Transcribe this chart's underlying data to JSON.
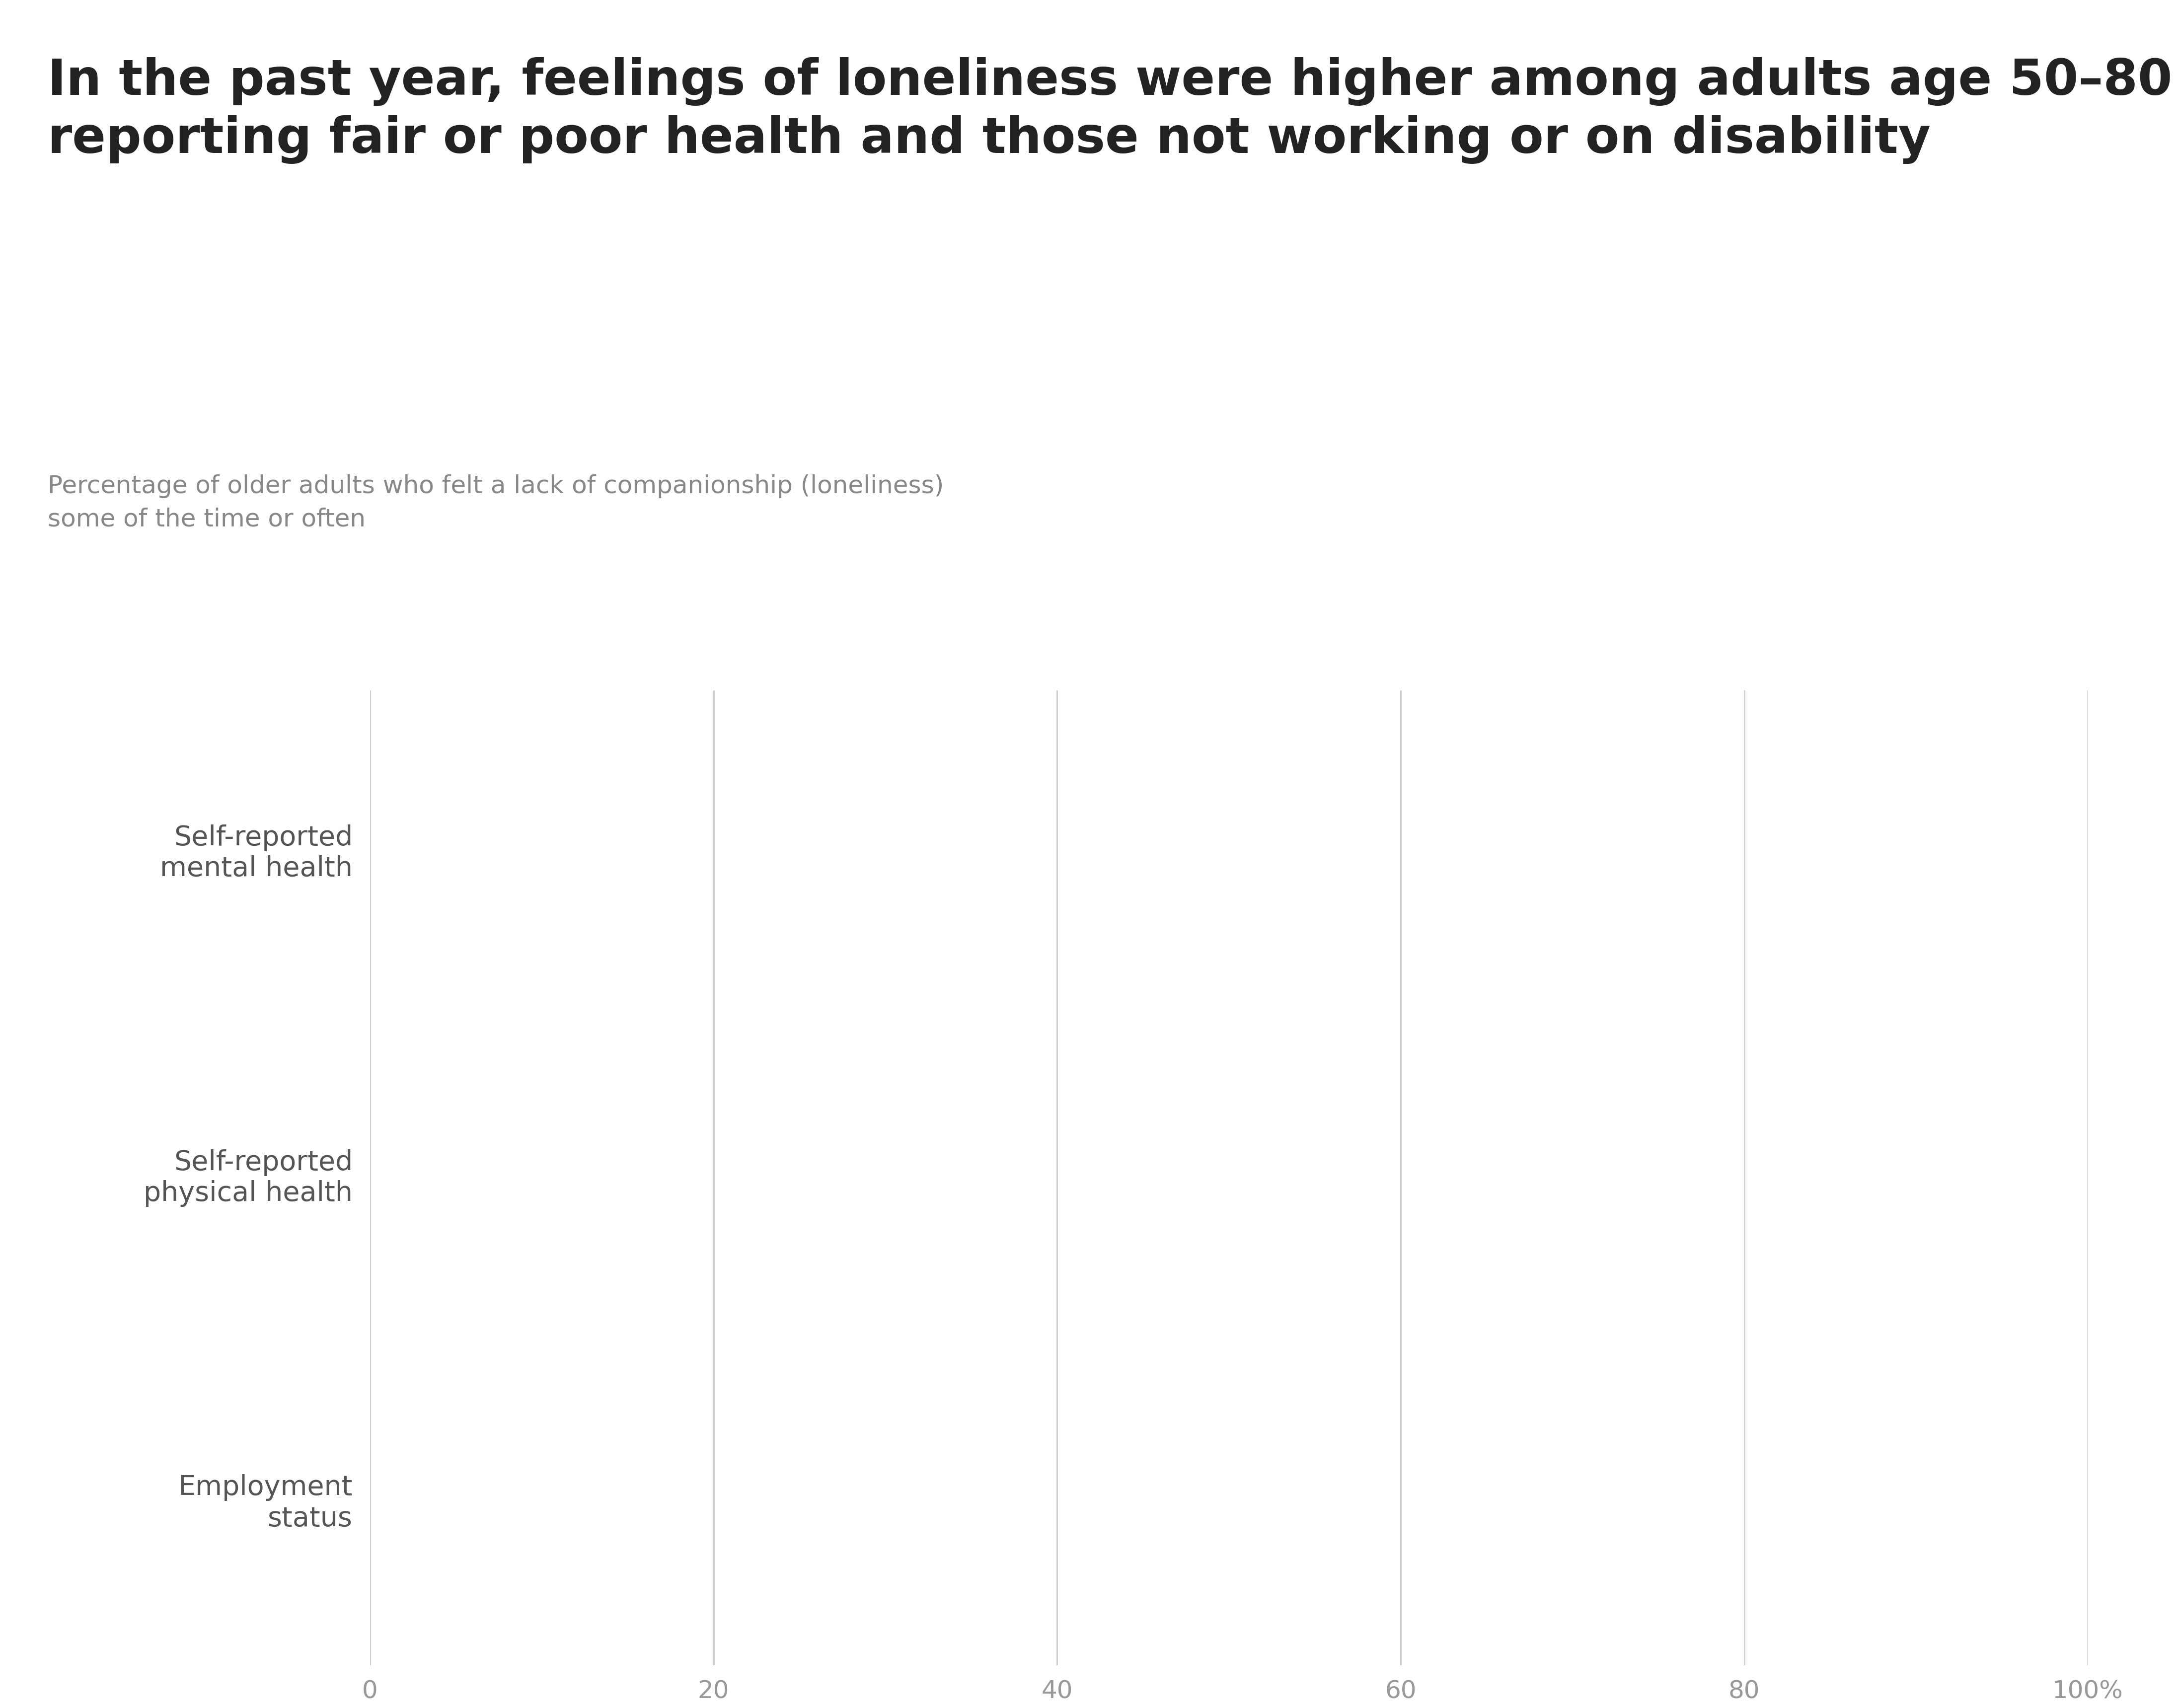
{
  "title_line1": "In the past year, feelings of loneliness were higher among adults age 50–80",
  "title_line2": "reporting fair or poor health and those not working or on disability",
  "subtitle_line1": "Percentage of older adults who felt a lack of companionship (loneliness)",
  "subtitle_line2": "some of the time or often",
  "categories": [
    "Self-reported\nmental health",
    "Self-reported\nphysical health",
    "Employment\nstatus"
  ],
  "xlim": [
    0,
    100
  ],
  "xticks": [
    0,
    20,
    40,
    60,
    80,
    100
  ],
  "xtick_labels": [
    "0",
    "20",
    "40",
    "60",
    "80",
    "100%"
  ],
  "background_color": "#ffffff",
  "title_color": "#222222",
  "subtitle_color": "#888888",
  "grid_color": "#cccccc",
  "label_color": "#555555",
  "tick_color": "#999999",
  "title_fontsize": 72,
  "subtitle_fontsize": 36,
  "label_fontsize": 40,
  "tick_fontsize": 36
}
